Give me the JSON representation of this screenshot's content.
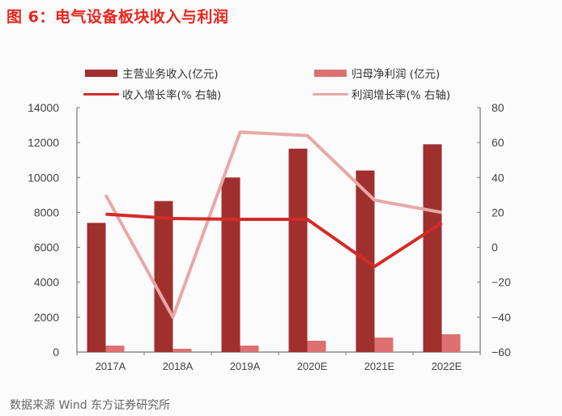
{
  "title": "图 6：电气设备板块收入与利润",
  "legend": [
    {
      "label": "主营业务收入(亿元)",
      "type": "bar",
      "color": "#a0302e"
    },
    {
      "label": "归母净利润 (亿元)",
      "type": "bar",
      "color": "#dd7070"
    },
    {
      "label": "收入增长率(%  右轴)",
      "type": "line",
      "color": "#d42b27"
    },
    {
      "label": "利润增长率(%  右轴)",
      "type": "line",
      "color": "#e8a8a8"
    }
  ],
  "source": "数据来源   Wind   东方证券研究所",
  "chart_data": {
    "type": "bar",
    "title": "图 6：电气设备板块收入与利润",
    "categories": [
      "2017A",
      "2018A",
      "2019A",
      "2020E",
      "2021E",
      "2022E"
    ],
    "series": [
      {
        "name": "主营业务收入(亿元)",
        "type": "bar",
        "axis": "left",
        "color": "#a0302e",
        "values": [
          7400,
          8650,
          10000,
          11650,
          10400,
          11900
        ]
      },
      {
        "name": "归母净利润(亿元)",
        "type": "bar",
        "axis": "left",
        "color": "#dd7070",
        "values": [
          370,
          190,
          370,
          650,
          830,
          1020
        ]
      },
      {
        "name": "收入增长率(% 右轴)",
        "type": "line",
        "axis": "right",
        "color": "#d42b27",
        "values": [
          19,
          16.5,
          16,
          16,
          -11,
          14
        ]
      },
      {
        "name": "利润增长率(% 右轴)",
        "type": "line",
        "axis": "right",
        "color": "#e8a8a8",
        "values": [
          30,
          -40,
          66,
          64,
          27,
          20
        ]
      }
    ],
    "left_axis": {
      "ylim": [
        0,
        14000
      ],
      "ticks": [
        0,
        2000,
        4000,
        6000,
        8000,
        10000,
        12000,
        14000
      ]
    },
    "right_axis": {
      "ylim": [
        -60,
        80
      ],
      "ticks": [
        -60,
        -40,
        -20,
        0,
        20,
        40,
        60,
        80
      ]
    },
    "xlabel": "",
    "ylabel": "",
    "grid": false,
    "legend_position": "top"
  }
}
